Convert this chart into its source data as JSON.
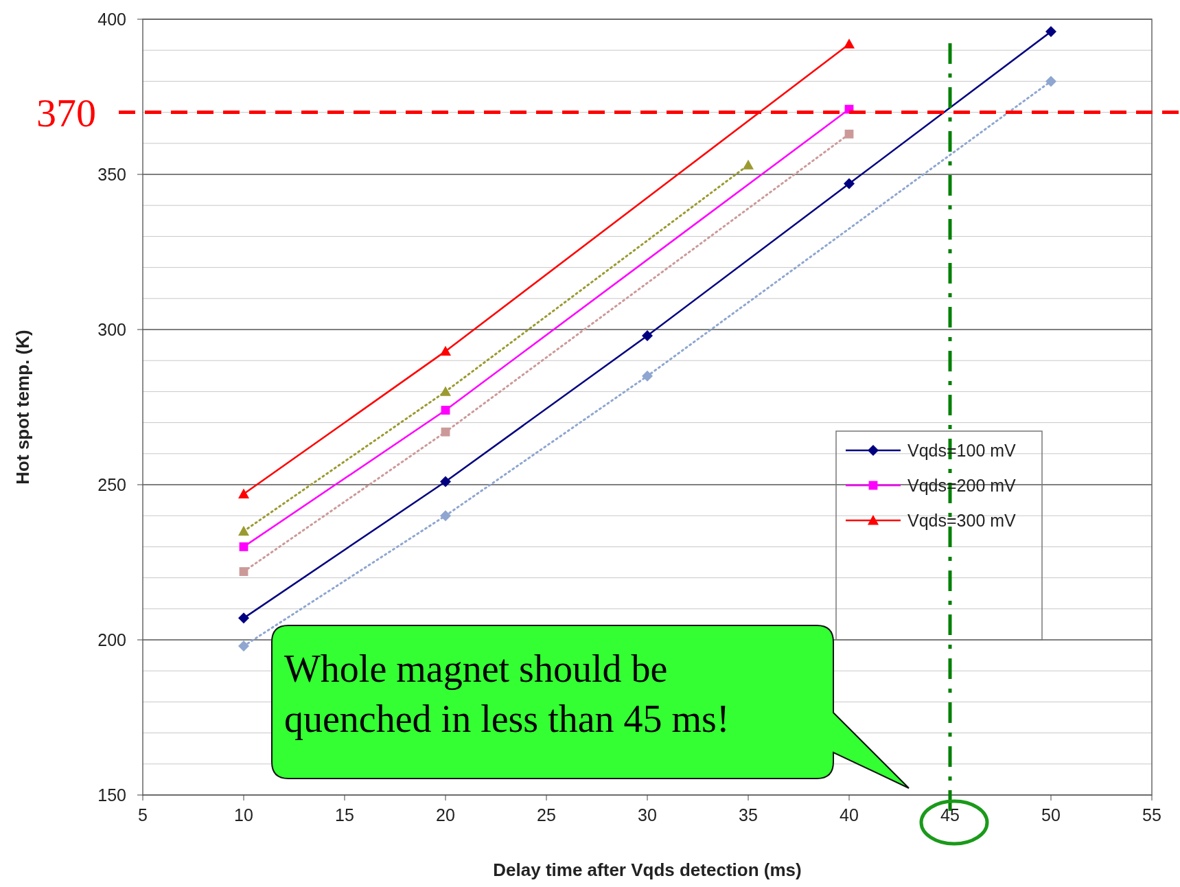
{
  "chart_data": {
    "type": "line",
    "xlabel": "Delay time after Vqds detection (ms)",
    "ylabel": "Hot spot temp. (K)",
    "xlim": [
      5,
      55
    ],
    "xticks": [
      5,
      10,
      15,
      20,
      25,
      30,
      35,
      40,
      45,
      50,
      55
    ],
    "ylim": [
      150,
      400
    ],
    "yticks": [
      150,
      200,
      250,
      300,
      350,
      400
    ],
    "grid": "y",
    "legend": "right",
    "series": [
      {
        "name": "Vqds=100 mV",
        "color": "#000080",
        "marker": "diamond",
        "line_style": "solid",
        "x": [
          10,
          20,
          30,
          40,
          50
        ],
        "values": [
          207,
          251,
          298,
          347,
          396
        ]
      },
      {
        "name": "Vqds=200 mV",
        "color": "#ff00ff",
        "marker": "square",
        "line_style": "solid",
        "x": [
          10,
          20,
          40
        ],
        "values": [
          230,
          274,
          371
        ]
      },
      {
        "name": "Vqds=300 mV",
        "color": "#ff0000",
        "marker": "triangle",
        "line_style": "solid",
        "x": [
          10,
          20,
          40
        ],
        "values": [
          247,
          293,
          392
        ]
      },
      {
        "color": "#8ea6d0",
        "marker": "diamond",
        "line_style": "dotted",
        "x": [
          10,
          20,
          30,
          50
        ],
        "values": [
          198,
          240,
          285,
          380
        ]
      },
      {
        "color": "#cc9999",
        "marker": "square",
        "line_style": "dotted",
        "x": [
          10,
          20,
          40
        ],
        "values": [
          222,
          267,
          363
        ]
      },
      {
        "color": "#9a9a30",
        "marker": "triangle",
        "line_style": "dotted",
        "x": [
          10,
          20,
          35
        ],
        "values": [
          235,
          280,
          353
        ]
      }
    ],
    "ref_lines": [
      {
        "axis": "y",
        "value": 370,
        "label": "370",
        "color": "#ff0000",
        "line_style": "dashed"
      },
      {
        "axis": "x",
        "value": 45,
        "color": "#008000",
        "line_style": "dashdot"
      }
    ],
    "annotations": [
      "Whole magnet should be quenched in less than 45 ms!"
    ]
  }
}
